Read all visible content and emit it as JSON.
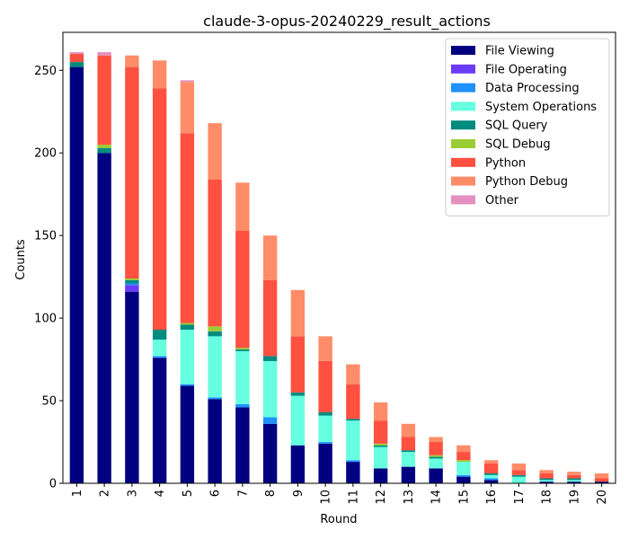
{
  "chart_data": {
    "type": "bar",
    "stacked": true,
    "title": "claude-3-opus-20240229_result_actions",
    "xlabel": "Round",
    "ylabel": "Counts",
    "ylim": [
      0,
      273
    ],
    "yticks": [
      0,
      50,
      100,
      150,
      200,
      250
    ],
    "categories": [
      "1",
      "2",
      "3",
      "4",
      "5",
      "6",
      "7",
      "8",
      "9",
      "10",
      "11",
      "12",
      "13",
      "14",
      "15",
      "16",
      "17",
      "18",
      "19",
      "20"
    ],
    "legend_position": "top-right",
    "grid": false,
    "series": [
      {
        "name": "File Viewing",
        "color": "#000080",
        "values": [
          252,
          200,
          116,
          76,
          59,
          51,
          46,
          36,
          23,
          24,
          13,
          9,
          10,
          9,
          4,
          2,
          0,
          1,
          1,
          1
        ]
      },
      {
        "name": "File Operating",
        "color": "#6a3cf7",
        "values": [
          0,
          0,
          4,
          0,
          0,
          0,
          0,
          0,
          0,
          0,
          0,
          0,
          0,
          0,
          0,
          0,
          0,
          0,
          0,
          0
        ]
      },
      {
        "name": "Data Processing",
        "color": "#1e90ff",
        "values": [
          0,
          0,
          1,
          1,
          1,
          1,
          2,
          4,
          0,
          1,
          1,
          0,
          0,
          0,
          1,
          1,
          0,
          0,
          0,
          0
        ]
      },
      {
        "name": "System Operations",
        "color": "#66ffe0",
        "values": [
          0,
          0,
          0,
          10,
          33,
          37,
          32,
          34,
          30,
          16,
          24,
          13,
          9,
          6,
          8,
          2,
          4,
          1,
          1,
          0
        ]
      },
      {
        "name": "SQL Query",
        "color": "#008b80",
        "values": [
          3,
          3,
          2,
          6,
          3,
          3,
          1,
          3,
          2,
          2,
          1,
          1,
          1,
          1,
          0,
          1,
          1,
          1,
          1,
          0
        ]
      },
      {
        "name": "SQL Debug",
        "color": "#9acd32",
        "values": [
          0,
          2,
          1,
          0,
          1,
          3,
          1,
          0,
          0,
          0,
          0,
          1,
          0,
          1,
          1,
          0,
          0,
          0,
          0,
          0
        ]
      },
      {
        "name": "Python",
        "color": "#ff5040",
        "values": [
          5,
          54,
          128,
          146,
          115,
          89,
          71,
          46,
          34,
          31,
          21,
          14,
          8,
          8,
          5,
          6,
          3,
          3,
          2,
          2
        ]
      },
      {
        "name": "Python Debug",
        "color": "#ff8c69",
        "values": [
          0,
          0,
          7,
          17,
          31,
          34,
          29,
          27,
          28,
          15,
          12,
          11,
          8,
          3,
          4,
          2,
          4,
          2,
          2,
          3
        ]
      },
      {
        "name": "Other",
        "color": "#e38fc0",
        "values": [
          1,
          2,
          0,
          0,
          1,
          0,
          0,
          0,
          0,
          0,
          0,
          0,
          0,
          0,
          0,
          0,
          0,
          0,
          0,
          0
        ]
      }
    ]
  }
}
